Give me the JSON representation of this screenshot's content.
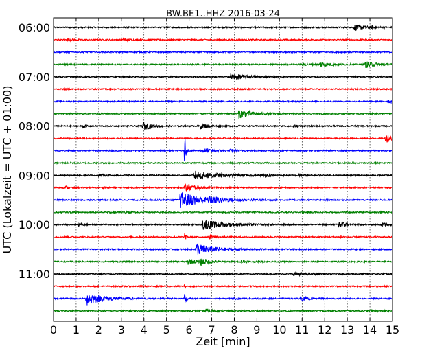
{
  "chart_data": {
    "type": "line",
    "title": "BW.BE1..HHZ 2016-03-24",
    "xlabel": "Zeit  [min]",
    "ylabel": "UTC (Lokalzeit = UTC + 01:00)",
    "xlim": [
      0,
      15
    ],
    "x_ticks": [
      "0",
      "1",
      "2",
      "3",
      "4",
      "5",
      "6",
      "7",
      "8",
      "9",
      "10",
      "11",
      "12",
      "13",
      "14",
      "15"
    ],
    "y_ticks": [
      {
        "label": "06:00",
        "trace_index": 0
      },
      {
        "label": "07:00",
        "trace_index": 4
      },
      {
        "label": "08:00",
        "trace_index": 8
      },
      {
        "label": "09:00",
        "trace_index": 12
      },
      {
        "label": "10:00",
        "trace_index": 16
      },
      {
        "label": "11:00",
        "trace_index": 20
      }
    ],
    "grid": true,
    "trace_interval_min": 15,
    "colors": [
      "#000000",
      "#ff0000",
      "#0000ff",
      "#008000"
    ],
    "traces": [
      {
        "start": "06:00",
        "events": [
          {
            "t": 13.3,
            "amp": 0.55,
            "dur": 0.5
          },
          {
            "t": 14.1,
            "amp": 0.25,
            "dur": 0.2
          }
        ]
      },
      {
        "start": "06:15",
        "events": [
          {
            "t": 0.6,
            "amp": 0.3,
            "dur": 0.15
          },
          {
            "t": 3.1,
            "amp": 0.3,
            "dur": 0.15
          }
        ]
      },
      {
        "start": "06:30",
        "events": []
      },
      {
        "start": "06:45",
        "events": [
          {
            "t": 11.8,
            "amp": 0.5,
            "dur": 0.4
          },
          {
            "t": 13.8,
            "amp": 0.6,
            "dur": 0.5
          },
          {
            "t": 11.0,
            "amp": 0.15,
            "dur": 0.4
          }
        ]
      },
      {
        "start": "07:00",
        "events": [
          {
            "t": 7.8,
            "amp": 0.7,
            "dur": 0.6
          }
        ]
      },
      {
        "start": "07:15",
        "events": []
      },
      {
        "start": "07:30",
        "events": [
          {
            "t": 14.8,
            "amp": 0.3,
            "dur": 0.3
          }
        ]
      },
      {
        "start": "07:45",
        "events": [
          {
            "t": 8.2,
            "amp": 0.9,
            "dur": 0.6
          }
        ]
      },
      {
        "start": "08:00",
        "events": [
          {
            "t": 1.3,
            "amp": 0.3,
            "dur": 0.15
          },
          {
            "t": 3.95,
            "amp": 0.9,
            "dur": 0.35
          },
          {
            "t": 6.5,
            "amp": 0.6,
            "dur": 0.3
          },
          {
            "t": 10.6,
            "amp": 0.3,
            "dur": 0.2
          }
        ]
      },
      {
        "start": "08:15",
        "events": [
          {
            "t": 14.7,
            "amp": 0.8,
            "dur": 0.35
          }
        ]
      },
      {
        "start": "08:30",
        "events": [
          {
            "t": 6.6,
            "amp": 0.45,
            "dur": 0.5
          },
          {
            "t": 7.8,
            "amp": 0.3,
            "dur": 0.2
          },
          {
            "t": 5.8,
            "amp": 3.5,
            "dur": 0.05
          }
        ]
      },
      {
        "start": "08:45",
        "events": []
      },
      {
        "start": "09:00",
        "events": [
          {
            "t": 6.2,
            "amp": 0.9,
            "dur": 1.0
          },
          {
            "t": 2.0,
            "amp": 0.25,
            "dur": 0.2
          },
          {
            "t": 9.3,
            "amp": 0.35,
            "dur": 0.2
          },
          {
            "t": 10.8,
            "amp": 0.25,
            "dur": 0.2
          }
        ]
      },
      {
        "start": "09:15",
        "events": [
          {
            "t": 0.55,
            "amp": 0.3,
            "dur": 0.15
          },
          {
            "t": 2.2,
            "amp": 0.2,
            "dur": 0.15
          },
          {
            "t": 5.8,
            "amp": 0.9,
            "dur": 0.5
          }
        ]
      },
      {
        "start": "09:30",
        "events": [
          {
            "t": 5.6,
            "amp": 1.6,
            "dur": 1.0
          },
          {
            "t": 6.9,
            "amp": 0.35,
            "dur": 0.6
          }
        ]
      },
      {
        "start": "09:45",
        "events": [
          {
            "t": 3.2,
            "amp": 0.25,
            "dur": 0.2
          },
          {
            "t": 2.5,
            "amp": 0.2,
            "dur": 0.15
          }
        ]
      },
      {
        "start": "10:00",
        "events": [
          {
            "t": 6.6,
            "amp": 1.0,
            "dur": 0.9
          },
          {
            "t": 12.6,
            "amp": 1.4,
            "dur": 0.2
          },
          {
            "t": 14.5,
            "amp": 0.55,
            "dur": 0.3
          },
          {
            "t": 1.1,
            "amp": 0.25,
            "dur": 0.15
          }
        ]
      },
      {
        "start": "10:15",
        "events": [
          {
            "t": 6.9,
            "amp": 0.4,
            "dur": 0.2
          },
          {
            "t": 5.8,
            "amp": 1.0,
            "dur": 0.05
          },
          {
            "t": 12.7,
            "amp": 0.5,
            "dur": 0.05
          }
        ]
      },
      {
        "start": "10:30",
        "events": [
          {
            "t": 6.3,
            "amp": 1.2,
            "dur": 0.7
          }
        ]
      },
      {
        "start": "10:45",
        "events": [
          {
            "t": 5.95,
            "amp": 0.6,
            "dur": 0.35
          },
          {
            "t": 6.5,
            "amp": 0.8,
            "dur": 0.3
          },
          {
            "t": 8.3,
            "amp": 0.3,
            "dur": 0.3
          }
        ]
      },
      {
        "start": "11:00",
        "events": [
          {
            "t": 10.6,
            "amp": 0.25,
            "dur": 0.8
          },
          {
            "t": 6.8,
            "amp": 0.3,
            "dur": 0.15
          }
        ]
      },
      {
        "start": "11:15",
        "events": [
          {
            "t": 5.8,
            "amp": 0.4,
            "dur": 0.05
          }
        ]
      },
      {
        "start": "11:30",
        "events": [
          {
            "t": 1.45,
            "amp": 1.4,
            "dur": 0.7
          },
          {
            "t": 10.9,
            "amp": 0.5,
            "dur": 0.3
          },
          {
            "t": 5.8,
            "amp": 2.0,
            "dur": 0.05
          },
          {
            "t": 8.0,
            "amp": 0.15,
            "dur": 0.2
          }
        ]
      },
      {
        "start": "11:45",
        "events": [
          {
            "t": 6.7,
            "amp": 0.45,
            "dur": 0.3
          },
          {
            "t": 14.0,
            "amp": 0.2,
            "dur": 0.3
          }
        ]
      }
    ]
  }
}
